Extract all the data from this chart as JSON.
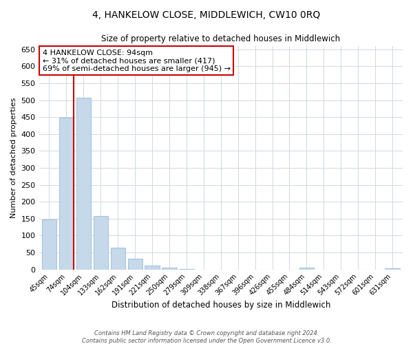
{
  "title": "4, HANKELOW CLOSE, MIDDLEWICH, CW10 0RQ",
  "subtitle": "Size of property relative to detached houses in Middlewich",
  "xlabel": "Distribution of detached houses by size in Middlewich",
  "ylabel": "Number of detached properties",
  "bar_labels": [
    "45sqm",
    "74sqm",
    "104sqm",
    "133sqm",
    "162sqm",
    "191sqm",
    "221sqm",
    "250sqm",
    "279sqm",
    "309sqm",
    "338sqm",
    "367sqm",
    "396sqm",
    "426sqm",
    "455sqm",
    "484sqm",
    "514sqm",
    "543sqm",
    "572sqm",
    "601sqm",
    "631sqm"
  ],
  "bar_values": [
    148,
    448,
    507,
    158,
    65,
    32,
    12,
    5,
    2,
    0,
    0,
    0,
    0,
    0,
    0,
    5,
    0,
    0,
    0,
    0,
    3
  ],
  "bar_color": "#c5d9ea",
  "bar_edge_color": "#a8c4dc",
  "grid_color": "#d0d8e0",
  "annotation_title": "4 HANKELOW CLOSE: 94sqm",
  "annotation_line1": "← 31% of detached houses are smaller (417)",
  "annotation_line2": "69% of semi-detached houses are larger (945) →",
  "annotation_box_color": "#ffffff",
  "annotation_box_edge_color": "#cc0000",
  "red_line_color": "#cc0000",
  "ylim": [
    0,
    660
  ],
  "yticks": [
    0,
    50,
    100,
    150,
    200,
    250,
    300,
    350,
    400,
    450,
    500,
    550,
    600,
    650
  ],
  "footer1": "Contains HM Land Registry data © Crown copyright and database right 2024.",
  "footer2": "Contains public sector information licensed under the Open Government Licence v3.0."
}
